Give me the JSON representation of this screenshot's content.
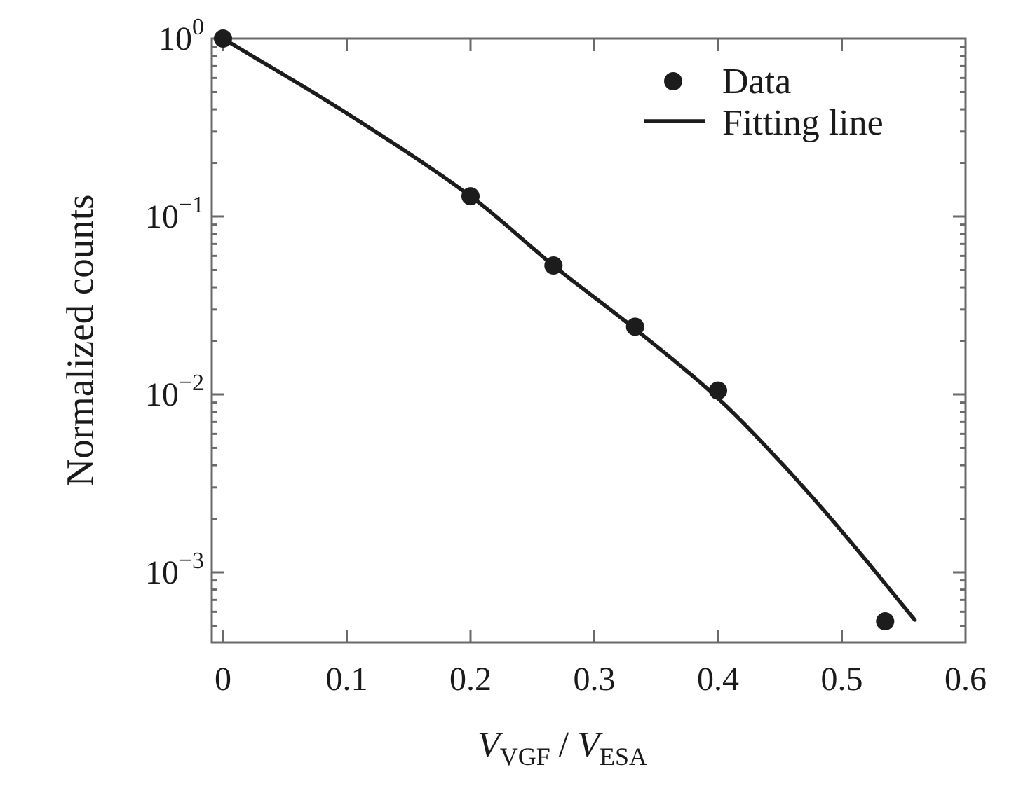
{
  "chart_data": {
    "type": "scatter",
    "title": "",
    "ylabel": "Normalized counts",
    "xlabel": {
      "v1": "V",
      "s1": "VGF",
      "slash": "/",
      "v2": "V",
      "s2": "ESA"
    },
    "x_ticks": [
      {
        "value": 0,
        "label": "0"
      },
      {
        "value": 0.1,
        "label": "0.1"
      },
      {
        "value": 0.2,
        "label": "0.2"
      },
      {
        "value": 0.3,
        "label": "0.3"
      },
      {
        "value": 0.4,
        "label": "0.4"
      },
      {
        "value": 0.5,
        "label": "0.5"
      },
      {
        "value": 0.6,
        "label": "0.6"
      }
    ],
    "y_tick_exponents": [
      0,
      -1,
      -2,
      -3
    ],
    "xlim": [
      -0.009,
      0.6
    ],
    "ylim": [
      0.00042,
      1.0
    ],
    "y_scale": "log",
    "grid": false,
    "legend_position": "upper right",
    "series": [
      {
        "name": "Data",
        "type": "scatter",
        "x": [
          0,
          0.2,
          0.267,
          0.333,
          0.4,
          0.535
        ],
        "y": [
          1.0,
          0.13,
          0.053,
          0.024,
          0.0105,
          0.00053
        ]
      },
      {
        "name": "Fitting line",
        "type": "line",
        "x": [
          0,
          0.1,
          0.2,
          0.267,
          0.334,
          0.4,
          0.45,
          0.5,
          0.559
        ],
        "y": [
          1.0,
          0.38,
          0.13,
          0.053,
          0.023,
          0.0095,
          0.0042,
          0.0017,
          0.00054
        ]
      }
    ],
    "legend": [
      {
        "marker": "dot",
        "label": "Data"
      },
      {
        "marker": "line",
        "label": "Fitting line"
      }
    ]
  },
  "colors": {
    "frame": "#6a6a6a",
    "tick": "#6a6a6a",
    "ink": "#1c1c1c",
    "background": "#ffffff"
  }
}
